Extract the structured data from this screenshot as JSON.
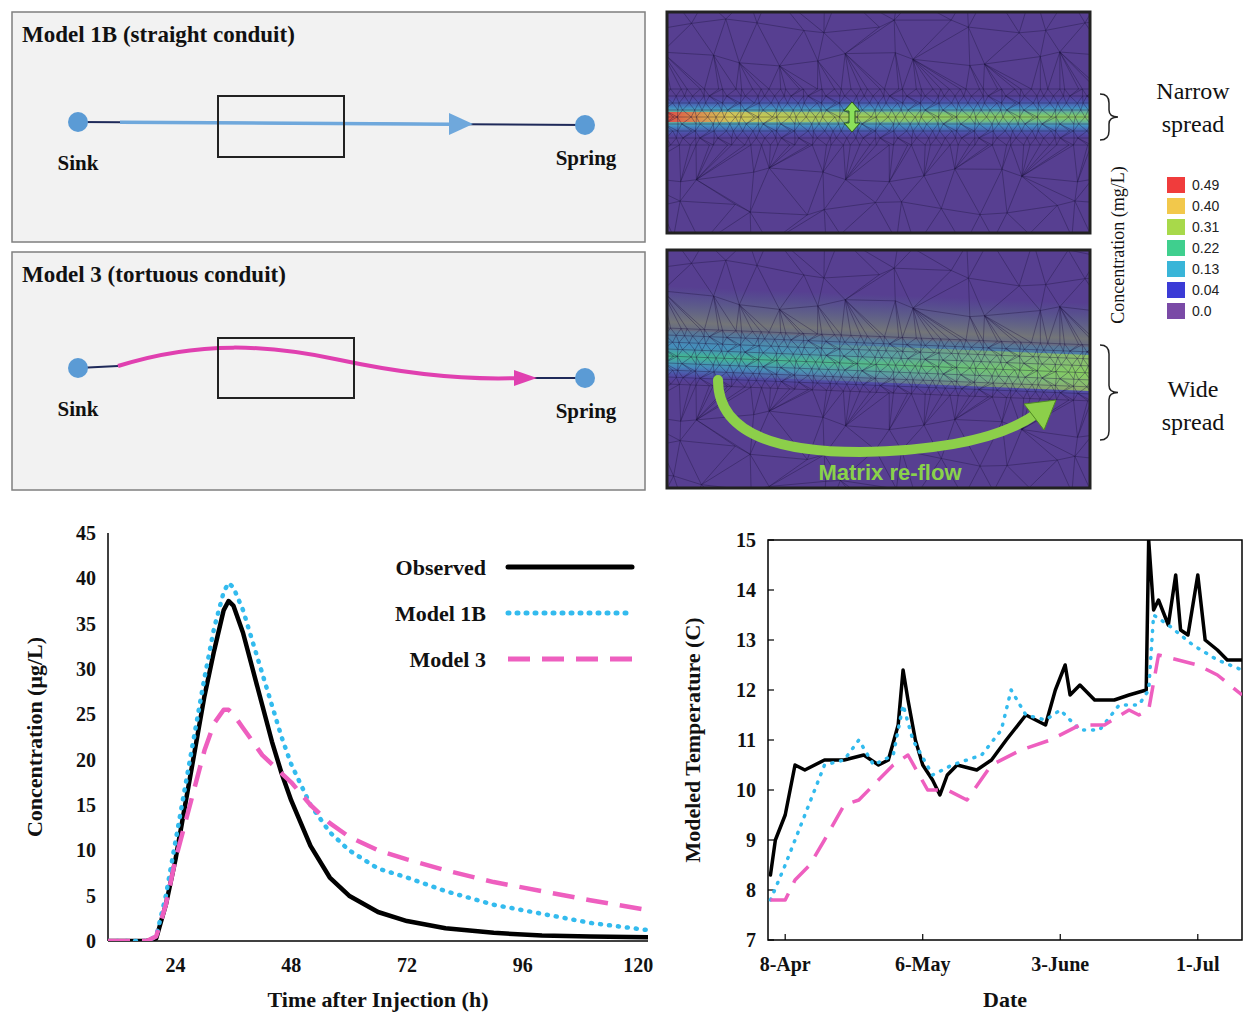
{
  "diagram": {
    "panels": [
      {
        "title": "Model 1B (straight conduit)",
        "source": "Sink",
        "outlet": "Spring",
        "spread": "Narrow spread"
      },
      {
        "title": "Model 3 (tortuous conduit)",
        "source": "Sink",
        "outlet": "Spring",
        "spread": "Wide spread",
        "annotation": "Matrix re-flow"
      }
    ],
    "colorbar": {
      "title": "Concentration (mg/L)",
      "ticks": [
        0.49,
        {
          "value": 0.4,
          "label": "0.40"
        },
        0.31,
        0.22,
        0.13,
        0.04,
        {
          "value": 0,
          "label": "0.0"
        }
      ],
      "colors": [
        "#f03c3c",
        "#f2c84b",
        "#a8d94a",
        "#3fcf8e",
        "#39b5d8",
        "#3b3bd6",
        "#7a4aa6"
      ]
    }
  },
  "chart_data": [
    {
      "type": "line",
      "x_label": "Time after Injection (h)",
      "y_label": "Concentration (μg/L)",
      "xlim": [
        10,
        122
      ],
      "xticks": [
        24,
        48,
        72,
        96,
        120
      ],
      "ylim": [
        0,
        45
      ],
      "yticks": [
        0,
        5,
        10,
        15,
        20,
        25,
        30,
        35,
        40,
        45
      ],
      "grid": false,
      "legend": "upper right",
      "x": [
        10,
        14,
        18,
        20,
        22,
        24,
        26,
        28,
        30,
        32,
        34,
        35,
        36,
        38,
        40,
        42,
        44,
        46,
        48,
        52,
        56,
        60,
        66,
        72,
        80,
        90,
        100,
        110,
        122
      ],
      "series": [
        {
          "name": "Observed",
          "color": "#000000",
          "line_style": "solid",
          "values": [
            0,
            0,
            0,
            0.3,
            4,
            9,
            15,
            21,
            27,
            32,
            36.5,
            37.5,
            37,
            34,
            30,
            26,
            22,
            18.5,
            15.5,
            10.5,
            7,
            5,
            3.2,
            2.2,
            1.4,
            0.9,
            0.6,
            0.5,
            0.4
          ]
        },
        {
          "name": "Model 1B",
          "color": "#33bbee",
          "line_style": "dotted",
          "values": [
            0,
            0,
            0,
            0.5,
            5,
            11,
            17,
            23,
            29,
            34.5,
            38.5,
            39.5,
            39,
            36.5,
            33,
            29.5,
            26,
            22.5,
            19.5,
            15,
            12,
            10,
            8,
            7,
            5.5,
            4,
            3,
            2,
            1.2
          ]
        },
        {
          "name": "Model 3",
          "color": "#ee5fbf",
          "line_style": "dashed",
          "values": [
            0,
            0,
            0,
            0.5,
            4,
            9,
            13,
            17,
            21,
            24,
            25.5,
            25.5,
            25,
            23.5,
            22,
            20.5,
            19.5,
            18.5,
            17.5,
            15,
            13,
            11.5,
            10,
            9,
            7.8,
            6.5,
            5.5,
            4.5,
            3.4
          ]
        }
      ]
    },
    {
      "type": "line",
      "x_label": "Date",
      "y_label": "Modeled Temperature (C)",
      "xlim": [
        -3.5,
        93
      ],
      "xticks": [
        {
          "value": 0,
          "label": "8-Apr"
        },
        {
          "value": 28,
          "label": "6-May"
        },
        {
          "value": 56,
          "label": "3-June"
        },
        {
          "value": 84,
          "label": "1-Jul"
        }
      ],
      "ylim": [
        7,
        15
      ],
      "yticks": [
        7,
        8,
        9,
        10,
        11,
        12,
        13,
        14,
        15
      ],
      "grid": false,
      "series": [
        {
          "color": "#000000",
          "line_style": "solid",
          "x": [
            -3,
            -2,
            0,
            2,
            4,
            8,
            12,
            16,
            19,
            21,
            23,
            24,
            25,
            26.5,
            28,
            30,
            31.5,
            33,
            35,
            39,
            42,
            45,
            49,
            53,
            55,
            57,
            58,
            60,
            63,
            67,
            70,
            73.5,
            74,
            75,
            76,
            78,
            79.5,
            80.5,
            82,
            84,
            85.5,
            88,
            90,
            93
          ],
          "values": [
            8.3,
            9.0,
            9.5,
            10.5,
            10.4,
            10.6,
            10.6,
            10.7,
            10.5,
            10.6,
            11.3,
            12.4,
            11.8,
            11.0,
            10.5,
            10.2,
            9.9,
            10.3,
            10.5,
            10.4,
            10.6,
            11.0,
            11.5,
            11.3,
            12.0,
            12.5,
            11.9,
            12.1,
            11.8,
            11.8,
            11.9,
            12.0,
            15.0,
            13.6,
            13.8,
            13.3,
            14.3,
            13.2,
            13.1,
            14.3,
            13.0,
            12.8,
            12.6,
            12.6
          ]
        },
        {
          "color": "#33bbee",
          "line_style": "dotted",
          "x": [
            -3,
            0,
            4,
            8,
            12,
            15,
            18,
            22,
            24,
            26,
            30,
            34,
            40,
            44,
            46,
            49,
            53,
            56,
            60,
            64,
            68,
            72,
            74,
            75,
            78,
            83,
            88,
            93
          ],
          "values": [
            7.8,
            8.5,
            9.5,
            10.5,
            10.6,
            11.0,
            10.5,
            10.7,
            11.7,
            11.0,
            10.3,
            10.5,
            10.7,
            11.2,
            12.0,
            11.5,
            11.4,
            11.6,
            11.2,
            11.2,
            11.7,
            11.7,
            12.0,
            13.5,
            13.3,
            12.9,
            12.6,
            12.4
          ]
        },
        {
          "color": "#ee5fbf",
          "line_style": "dashed",
          "x": [
            -3,
            0,
            2,
            5,
            8,
            12,
            15,
            22,
            25,
            29,
            33,
            37,
            42,
            48,
            54,
            60,
            65,
            70,
            72,
            74,
            76,
            80,
            84,
            88,
            93
          ],
          "values": [
            7.8,
            7.8,
            8.2,
            8.5,
            9.0,
            9.7,
            9.8,
            10.5,
            10.7,
            10.0,
            10.0,
            9.8,
            10.5,
            10.8,
            11.0,
            11.3,
            11.3,
            11.6,
            11.5,
            11.6,
            12.7,
            12.6,
            12.5,
            12.3,
            11.9
          ]
        }
      ]
    }
  ]
}
